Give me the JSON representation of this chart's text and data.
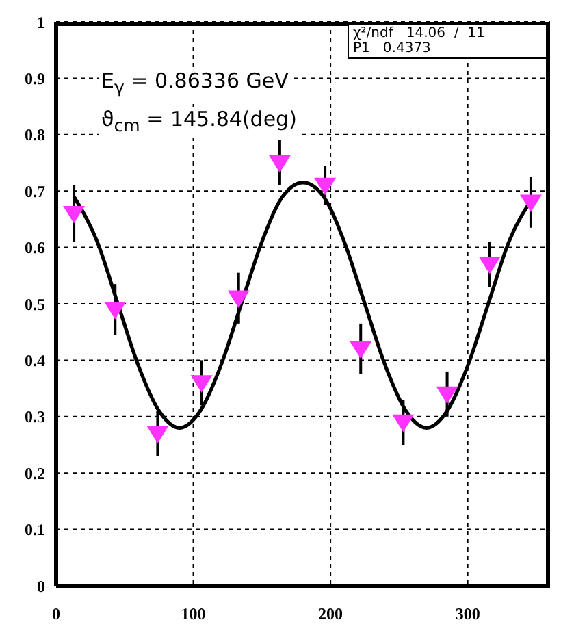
{
  "chart_data": {
    "type": "scatter",
    "annotations": [
      "χ²/ndf   14.06  /  11",
      "P1   0.4373",
      "E$_{γ}$ = 0.86336 GeV",
      "ϑ$_{cm}$ = 145.84(deg)"
    ],
    "x": [
      13,
      43,
      74,
      106,
      133,
      163,
      196,
      222,
      253,
      285,
      316,
      346
    ],
    "series": [
      {
        "color": "#ff33ff",
        "marker": "triangle",
        "values": [
          0.66,
          0.49,
          0.27,
          0.36,
          0.51,
          0.75,
          0.71,
          0.42,
          0.29,
          0.34,
          0.57,
          0.68
        ],
        "errors": [
          0.05,
          0.045,
          0.04,
          0.04,
          0.045,
          0.04,
          0.035,
          0.045,
          0.04,
          0.04,
          0.04,
          0.045
        ]
      },
      {
        "type": "line",
        "color": "#000000",
        "marker": "none",
        "line_style": "solid",
        "x": [
          13,
          30,
          45,
          60,
          75,
          90,
          105,
          120,
          135,
          150,
          165,
          180,
          195,
          210,
          225,
          240,
          255,
          270,
          285,
          300,
          315,
          330,
          348
        ],
        "values": [
          0.69,
          0.61,
          0.5,
          0.39,
          0.31,
          0.28,
          0.31,
          0.39,
          0.5,
          0.61,
          0.69,
          0.715,
          0.69,
          0.61,
          0.5,
          0.39,
          0.31,
          0.28,
          0.31,
          0.39,
          0.5,
          0.61,
          0.69
        ]
      }
    ],
    "xlim": [
      0,
      360
    ],
    "xticks": [
      0,
      100,
      200,
      300
    ],
    "ylim": [
      0,
      1
    ],
    "yticks": [
      0,
      0.1,
      0.2,
      0.3,
      0.4,
      0.5,
      0.6,
      0.7,
      0.8,
      0.9,
      1
    ],
    "grid": true
  }
}
